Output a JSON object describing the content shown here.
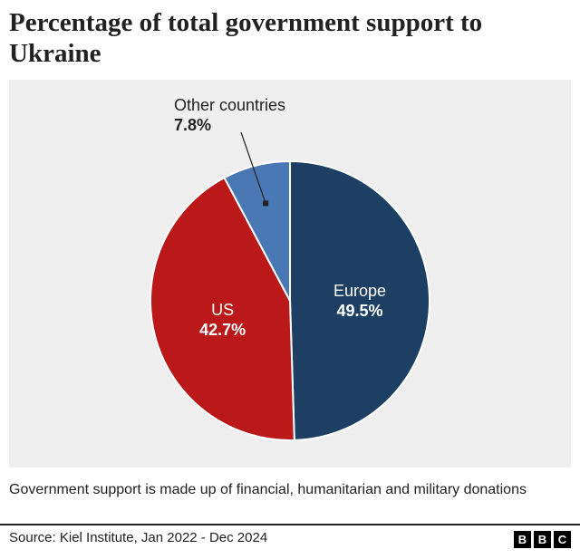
{
  "title": "Percentage of total government support to Ukraine",
  "note": "Government support is made up of financial, humanitarian and military donations",
  "source": "Source: Kiel Institute, Jan 2022 - Dec 2024",
  "logo": [
    "B",
    "B",
    "C"
  ],
  "chart_data": {
    "type": "pie",
    "title": "Percentage of total government support to Ukraine",
    "slices": [
      {
        "label": "Europe",
        "value": 49.5,
        "value_label": "49.5%",
        "color": "#1d3f63"
      },
      {
        "label": "US",
        "value": 42.7,
        "value_label": "42.7%",
        "color": "#bb1919"
      },
      {
        "label": "Other countries",
        "value": 7.8,
        "value_label": "7.8%",
        "color": "#4a78b5"
      }
    ],
    "start_angle": "12 o'clock, clockwise",
    "label_placement": "inside for Europe and US; outside with leader line for Other countries"
  }
}
